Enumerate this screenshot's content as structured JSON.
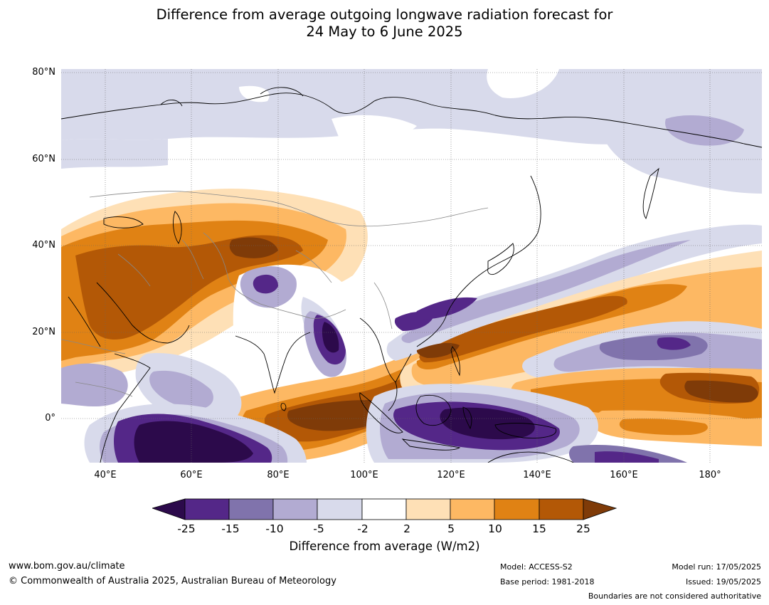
{
  "title_line1": "Difference from average outgoing longwave radiation forecast for",
  "title_line2": "24 May to 6 June 2025",
  "map": {
    "lat_labels": [
      "80°N",
      "60°N",
      "40°N",
      "20°N",
      "0°"
    ],
    "lon_labels": [
      "40°E",
      "60°E",
      "80°E",
      "100°E",
      "120°E",
      "140°E",
      "160°E",
      "180°"
    ],
    "projection": "equirectangular",
    "extent": {
      "lon": [
        30,
        192
      ],
      "lat": [
        -10,
        81
      ]
    }
  },
  "colorbar": {
    "label": "Difference from average (W/m2)",
    "ticks": [
      "-25",
      "-15",
      "-10",
      "-5",
      "-2",
      "2",
      "5",
      "10",
      "15",
      "25"
    ],
    "colors": [
      "#2c0a4b",
      "#542788",
      "#8073ac",
      "#b2abd2",
      "#d8daeb",
      "#ffffff",
      "#fee0b6",
      "#fdb863",
      "#e08214",
      "#b35806",
      "#7f3b08"
    ]
  },
  "footer": {
    "website": "www.bom.gov.au/climate",
    "copyright": "© Commonwealth of Australia 2025, Australian Bureau of Meteorology",
    "model": "Model: ACCESS-S2",
    "base_period": "Base period: 1981-2018",
    "model_run": "Model run: 17/05/2025",
    "issued": "Issued: 19/05/2025",
    "disclaimer": "Boundaries are not considered authoritative"
  }
}
